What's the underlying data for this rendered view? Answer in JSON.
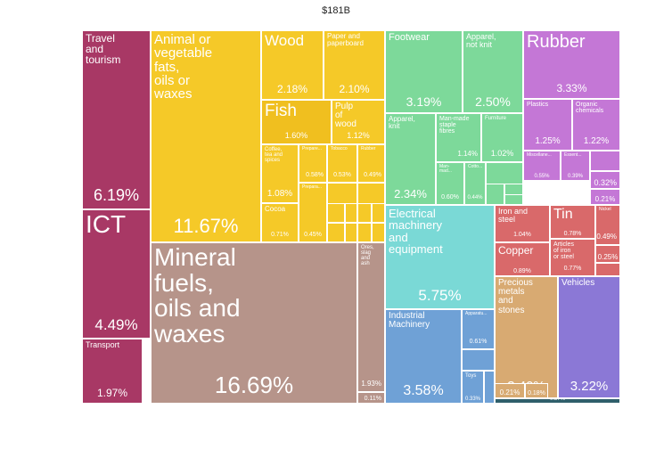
{
  "title": "$181B",
  "chart_data": {
    "type": "treemap",
    "total_label": "$181B",
    "colors": {
      "services": "#a83865",
      "vegetable": "#f5c928",
      "animal": "#f0bf1f",
      "mineral": "#b6948a",
      "textiles": "#7dd99a",
      "plastics": "#c477d6",
      "machinery": "#7ad9d6",
      "machinery_dark": "#6fa1d6",
      "metals": "#d9696a",
      "stone": "#d8aa72",
      "transportation": "#8b78d6",
      "instruments": "#2f5f6b"
    },
    "tiles": [
      {
        "label": "Travel\nand\ntourism",
        "value": "6.19%",
        "group": "services"
      },
      {
        "label": "ICT",
        "value": "4.49%",
        "group": "services"
      },
      {
        "label": "Transport",
        "value": "1.97%",
        "group": "services"
      },
      {
        "label": "Animal or\nvegetable\nfats,\noils or\nwaxes",
        "value": "11.67%",
        "group": "vegetable"
      },
      {
        "label": "Wood",
        "value": "2.18%",
        "group": "vegetable"
      },
      {
        "label": "Paper and\npaperboard",
        "value": "2.10%",
        "group": "vegetable"
      },
      {
        "label": "Fish",
        "value": "1.60%",
        "group": "animal"
      },
      {
        "label": "Pulp\nof\nwood",
        "value": "1.12%",
        "group": "vegetable"
      },
      {
        "label": "Coffee,\ntea and\nspices",
        "value": "1.08%",
        "group": "vegetable"
      },
      {
        "label": "Prepare...",
        "value": "0.58%",
        "group": "vegetable"
      },
      {
        "label": "Tobacco",
        "value": "0.53%",
        "group": "vegetable"
      },
      {
        "label": "Rubber",
        "value": "0.49%",
        "group": "vegetable"
      },
      {
        "label": "Prepara...",
        "value": "0.45%",
        "group": "vegetable"
      },
      {
        "label": "Cocoa",
        "value": "0.71%",
        "group": "vegetable"
      },
      {
        "label": "Mineral\nfuels,\noils and\nwaxes",
        "value": "16.69%",
        "group": "mineral"
      },
      {
        "label": "Ores,\nslag\nand\nash",
        "value": "1.93%",
        "group": "mineral"
      },
      {
        "label": "",
        "value": "0.11%",
        "group": "mineral"
      },
      {
        "label": "Footwear",
        "value": "3.19%",
        "group": "textiles"
      },
      {
        "label": "Apparel,\nnot knit",
        "value": "2.50%",
        "group": "textiles"
      },
      {
        "label": "Apparel,\nknit",
        "value": "2.34%",
        "group": "textiles"
      },
      {
        "label": "Man-made\nstaple\nfibres",
        "value": "1.14%",
        "group": "textiles"
      },
      {
        "label": "Furniture",
        "value": "1.02%",
        "group": "textiles"
      },
      {
        "label": "Man-mad...",
        "value": "0.60%",
        "group": "textiles"
      },
      {
        "label": "Cotto...",
        "value": "0.44%",
        "group": "textiles"
      },
      {
        "label": "Rubber",
        "value": "3.33%",
        "group": "plastics"
      },
      {
        "label": "Plastics",
        "value": "1.25%",
        "group": "plastics"
      },
      {
        "label": "Organic\nchemicals",
        "value": "1.22%",
        "group": "plastics"
      },
      {
        "label": "Miscellane...",
        "value": "0.55%",
        "group": "plastics"
      },
      {
        "label": "Essent...",
        "value": "0.39%",
        "group": "plastics"
      },
      {
        "label": "",
        "value": "0.32%",
        "group": "plastics"
      },
      {
        "label": "",
        "value": "0.21%",
        "group": "plastics"
      },
      {
        "label": "Electrical\nmachinery\nand\nequipment",
        "value": "5.75%",
        "group": "machinery"
      },
      {
        "label": "Industrial\nMachinery",
        "value": "3.58%",
        "group": "machinery_dark"
      },
      {
        "label": "Apparatu...",
        "value": "0.61%",
        "group": "machinery_dark"
      },
      {
        "label": "Toys",
        "value": "0.33%",
        "group": "machinery_dark"
      },
      {
        "label": "Iron and\nsteel",
        "value": "1.04%",
        "group": "metals"
      },
      {
        "label": "Tin",
        "value": "0.78%",
        "group": "metals"
      },
      {
        "label": "Nickel",
        "value": "0.49%",
        "group": "metals"
      },
      {
        "label": "Copper",
        "value": "0.89%",
        "group": "metals"
      },
      {
        "label": "Articles\nof iron\nor steel",
        "value": "0.77%",
        "group": "metals"
      },
      {
        "label": "",
        "value": "0.25%",
        "group": "metals"
      },
      {
        "label": "Precious\nmetals\nand\nstones",
        "value": "3.40%",
        "group": "stone"
      },
      {
        "label": "",
        "value": "0.21%",
        "group": "stone"
      },
      {
        "label": "",
        "value": "0.18%",
        "group": "stone"
      },
      {
        "label": "Vehicles",
        "value": "3.22%",
        "group": "transportation"
      },
      {
        "label": "",
        "value": "0.37%",
        "group": "instruments"
      }
    ]
  }
}
